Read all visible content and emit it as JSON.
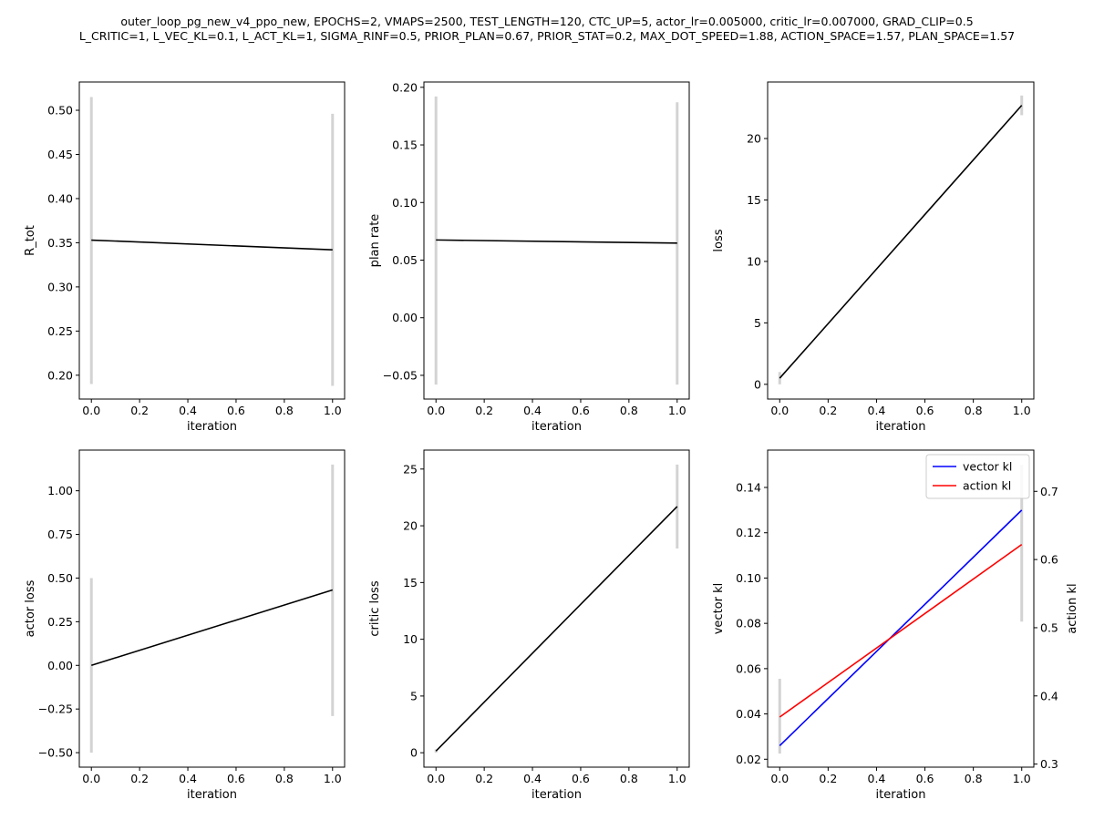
{
  "figure": {
    "title_line1": "outer_loop_pg_new_v4_ppo_new, EPOCHS=2, VMAPS=2500, TEST_LENGTH=120, CTC_UP=5, actor_lr=0.005000, critic_lr=0.007000, GRAD_CLIP=0.5",
    "title_line2": "L_CRITIC=1, L_VEC_KL=0.1, L_ACT_KL=1, SIGMA_RINF=0.5, PRIOR_PLAN=0.67, PRIOR_STAT=0.2, MAX_DOT_SPEED=1.88, ACTION_SPACE=1.57, PLAN_SPACE=1.57"
  },
  "colors": {
    "line": "#000000",
    "errorbar": "#d3d3d3",
    "vector_kl": "#0000ff",
    "action_kl": "#ff0000"
  },
  "chart_data": [
    {
      "type": "line",
      "xlabel": "iteration",
      "ylabel": "R_tot",
      "x": [
        0,
        1
      ],
      "y": [
        0.353,
        0.342
      ],
      "yerr_low": [
        0.19,
        0.188
      ],
      "yerr_high": [
        0.515,
        0.496
      ],
      "xlim": [
        -0.05,
        1.05
      ],
      "ylim": [
        0.173,
        0.532
      ],
      "xticks": [
        0.0,
        0.2,
        0.4,
        0.6,
        0.8,
        1.0
      ],
      "xtick_labels": [
        "0.0",
        "0.2",
        "0.4",
        "0.6",
        "0.8",
        "1.0"
      ],
      "yticks": [
        0.2,
        0.25,
        0.3,
        0.35,
        0.4,
        0.45,
        0.5
      ],
      "ytick_labels": [
        "0.20",
        "0.25",
        "0.30",
        "0.35",
        "0.40",
        "0.45",
        "0.50"
      ],
      "grid": false
    },
    {
      "type": "line",
      "xlabel": "iteration",
      "ylabel": "plan rate",
      "x": [
        0,
        1
      ],
      "y": [
        0.0675,
        0.0648
      ],
      "yerr_low": [
        -0.058,
        -0.058
      ],
      "yerr_high": [
        0.192,
        0.187
      ],
      "xlim": [
        -0.05,
        1.05
      ],
      "ylim": [
        -0.0706,
        0.2046
      ],
      "xticks": [
        0.0,
        0.2,
        0.4,
        0.6,
        0.8,
        1.0
      ],
      "xtick_labels": [
        "0.0",
        "0.2",
        "0.4",
        "0.6",
        "0.8",
        "1.0"
      ],
      "yticks": [
        -0.05,
        0.0,
        0.05,
        0.1,
        0.15,
        0.2
      ],
      "ytick_labels": [
        "−0.05",
        "0.00",
        "0.05",
        "0.10",
        "0.15",
        "0.20"
      ],
      "grid": false
    },
    {
      "type": "line",
      "xlabel": "iteration",
      "ylabel": "loss",
      "x": [
        0,
        1
      ],
      "y": [
        0.5,
        22.7
      ],
      "yerr_low": [
        0.0,
        21.9
      ],
      "yerr_high": [
        1.0,
        23.5
      ],
      "xlim": [
        -0.05,
        1.05
      ],
      "ylim": [
        -1.2,
        24.6
      ],
      "xticks": [
        0.0,
        0.2,
        0.4,
        0.6,
        0.8,
        1.0
      ],
      "xtick_labels": [
        "0.0",
        "0.2",
        "0.4",
        "0.6",
        "0.8",
        "1.0"
      ],
      "yticks": [
        0,
        5,
        10,
        15,
        20
      ],
      "ytick_labels": [
        "0",
        "5",
        "10",
        "15",
        "20"
      ],
      "grid": false
    },
    {
      "type": "line",
      "xlabel": "iteration",
      "ylabel": "actor loss",
      "x": [
        0,
        1
      ],
      "y": [
        0.0,
        0.432
      ],
      "yerr_low": [
        -0.5,
        -0.29
      ],
      "yerr_high": [
        0.5,
        1.15
      ],
      "xlim": [
        -0.05,
        1.05
      ],
      "ylim": [
        -0.583,
        1.233
      ],
      "xticks": [
        0.0,
        0.2,
        0.4,
        0.6,
        0.8,
        1.0
      ],
      "xtick_labels": [
        "0.0",
        "0.2",
        "0.4",
        "0.6",
        "0.8",
        "1.0"
      ],
      "yticks": [
        -0.5,
        -0.25,
        0.0,
        0.25,
        0.5,
        0.75,
        1.0
      ],
      "ytick_labels": [
        "−0.50",
        "−0.25",
        "0.00",
        "0.25",
        "0.50",
        "0.75",
        "1.00"
      ],
      "grid": false
    },
    {
      "type": "line",
      "xlabel": "iteration",
      "ylabel": "critic loss",
      "x": [
        0,
        1
      ],
      "y": [
        0.15,
        21.7
      ],
      "yerr_low": [
        0.0,
        18.0
      ],
      "yerr_high": [
        0.3,
        25.4
      ],
      "xlim": [
        -0.05,
        1.05
      ],
      "ylim": [
        -1.27,
        26.67
      ],
      "xticks": [
        0.0,
        0.2,
        0.4,
        0.6,
        0.8,
        1.0
      ],
      "xtick_labels": [
        "0.0",
        "0.2",
        "0.4",
        "0.6",
        "0.8",
        "1.0"
      ],
      "yticks": [
        0,
        5,
        10,
        15,
        20,
        25
      ],
      "ytick_labels": [
        "0",
        "5",
        "10",
        "15",
        "20",
        "25"
      ],
      "grid": false
    },
    {
      "type": "line",
      "xlabel": "iteration",
      "ylabel": "vector kl",
      "ylabel_right": "action kl",
      "x": [
        0,
        1
      ],
      "xlim": [
        -0.05,
        1.05
      ],
      "ylim": [
        0.0165,
        0.1565
      ],
      "ylim_right": [
        0.2955,
        0.7605
      ],
      "xticks": [
        0.0,
        0.2,
        0.4,
        0.6,
        0.8,
        1.0
      ],
      "xtick_labels": [
        "0.0",
        "0.2",
        "0.4",
        "0.6",
        "0.8",
        "1.0"
      ],
      "yticks": [
        0.02,
        0.04,
        0.06,
        0.08,
        0.1,
        0.12,
        0.14
      ],
      "ytick_labels": [
        "0.02",
        "0.04",
        "0.06",
        "0.08",
        "0.10",
        "0.12",
        "0.14"
      ],
      "yticks_right": [
        0.3,
        0.4,
        0.5,
        0.6,
        0.7
      ],
      "ytick_labels_right": [
        "0.3",
        "0.4",
        "0.5",
        "0.6",
        "0.7"
      ],
      "series": [
        {
          "name": "vector kl",
          "axis": "left",
          "y": [
            0.026,
            0.13
          ],
          "color": "#0000ff"
        },
        {
          "name": "action kl",
          "axis": "right",
          "y": [
            0.369,
            0.622
          ],
          "color": "#ff0000"
        }
      ],
      "errorbars": [
        {
          "axis": "left",
          "x": 0,
          "low": 0.0225,
          "high": 0.0555
        },
        {
          "axis": "right",
          "x": 1,
          "low": 0.509,
          "high": 0.739
        }
      ],
      "legend": "top-right",
      "grid": false
    }
  ]
}
